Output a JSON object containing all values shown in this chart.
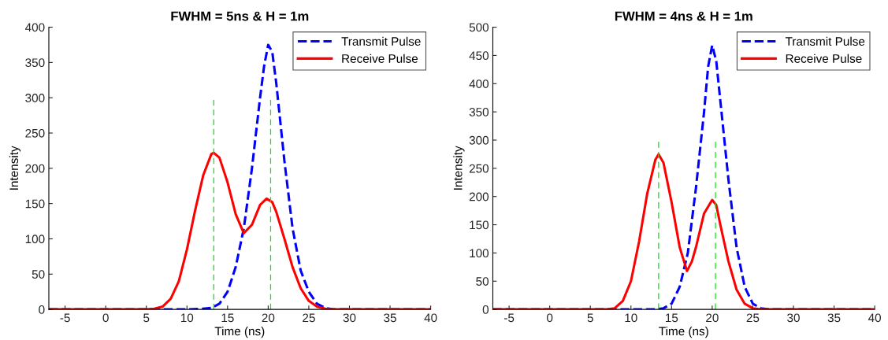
{
  "chart_data": [
    {
      "type": "line",
      "title": "FWHM = 5ns & H = 1m",
      "xlabel": "Time (ns)",
      "ylabel": "Intensity",
      "xlim": [
        -7,
        40
      ],
      "xticks": [
        -5,
        0,
        5,
        10,
        15,
        20,
        25,
        30,
        35,
        40
      ],
      "ylim": [
        0,
        400
      ],
      "yticks": [
        0,
        50,
        100,
        150,
        200,
        250,
        300,
        350,
        400
      ],
      "legend": "top right",
      "grid": false,
      "series": [
        {
          "name": "Transmit Pulse",
          "color": "#0000ff",
          "line_style": "dashed",
          "x": [
            -7,
            10,
            12,
            13,
            14,
            15,
            16,
            17,
            18,
            19,
            19.5,
            20,
            20.5,
            21,
            22,
            23,
            24,
            25,
            26,
            27,
            28,
            40
          ],
          "values": [
            0,
            0,
            1,
            2,
            8,
            25,
            60,
            115,
            200,
            300,
            345,
            375,
            365,
            320,
            210,
            115,
            55,
            25,
            8,
            2,
            0,
            0
          ]
        },
        {
          "name": "Receive Pulse",
          "color": "#ff0000",
          "line_style": "solid",
          "x": [
            -7,
            5,
            6,
            7,
            8,
            9,
            10,
            11,
            12,
            13,
            13.3,
            14,
            15,
            16,
            17,
            18,
            19,
            19.8,
            20.5,
            21,
            22,
            23,
            24,
            25,
            26,
            27,
            28,
            40
          ],
          "values": [
            0,
            0,
            1,
            4,
            15,
            40,
            85,
            140,
            190,
            220,
            222,
            215,
            180,
            135,
            108,
            120,
            148,
            157,
            152,
            138,
            100,
            60,
            30,
            12,
            4,
            1,
            0,
            0
          ]
        },
        {
          "color": "#00ee00",
          "line_style": "dashed",
          "x": [
            13.3,
            13.3
          ],
          "values": [
            0,
            297
          ]
        },
        {
          "color": "#00ee00",
          "line_style": "dashed",
          "x": [
            20.3,
            20.3
          ],
          "values": [
            0,
            297
          ]
        }
      ]
    },
    {
      "type": "line",
      "title": "FWHM = 4ns & H = 1m",
      "xlabel": "Time (ns)",
      "ylabel": "Intensity",
      "xlim": [
        -7,
        40
      ],
      "xticks": [
        -5,
        0,
        5,
        10,
        15,
        20,
        25,
        30,
        35,
        40
      ],
      "ylim": [
        0,
        500
      ],
      "yticks": [
        0,
        50,
        100,
        150,
        200,
        250,
        300,
        350,
        400,
        450,
        500
      ],
      "legend": "top right",
      "grid": false,
      "series": [
        {
          "name": "Transmit Pulse",
          "color": "#0000ff",
          "line_style": "dashed",
          "x": [
            -7,
            13,
            14,
            15,
            16,
            17,
            18,
            19,
            19.5,
            20,
            20.5,
            21,
            22,
            23,
            24,
            25,
            26,
            27,
            40
          ],
          "values": [
            0,
            0,
            2,
            10,
            40,
            100,
            215,
            350,
            430,
            468,
            440,
            370,
            230,
            110,
            40,
            10,
            2,
            0,
            0
          ]
        },
        {
          "name": "Receive Pulse",
          "color": "#ff0000",
          "line_style": "solid",
          "x": [
            -7,
            7,
            8,
            9,
            10,
            11,
            12,
            13,
            13.4,
            14,
            15,
            16,
            16.9,
            17.5,
            18,
            19,
            20,
            20.5,
            21,
            22,
            23,
            24,
            25,
            26,
            40
          ],
          "values": [
            0,
            0,
            2,
            15,
            50,
            120,
            205,
            265,
            275,
            260,
            190,
            110,
            68,
            85,
            110,
            170,
            194,
            185,
            150,
            85,
            35,
            10,
            2,
            0,
            0
          ]
        },
        {
          "color": "#00ee00",
          "line_style": "dashed",
          "x": [
            13.4,
            13.4
          ],
          "values": [
            0,
            297
          ]
        },
        {
          "color": "#00ee00",
          "line_style": "dashed",
          "x": [
            20.4,
            20.4
          ],
          "values": [
            0,
            297
          ]
        }
      ]
    }
  ]
}
